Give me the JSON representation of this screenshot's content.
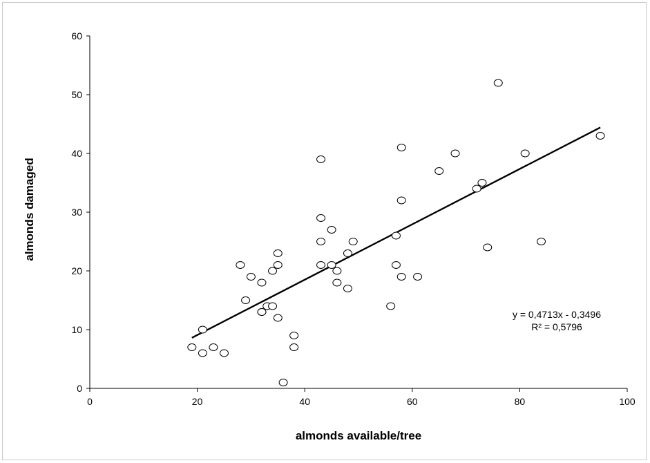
{
  "chart_data": {
    "type": "scatter",
    "xlabel": "almonds available/tree",
    "ylabel": "almonds damaged",
    "xlim": [
      0,
      100
    ],
    "ylim": [
      0,
      60
    ],
    "x_ticks": [
      0,
      20,
      40,
      60,
      80,
      100
    ],
    "y_ticks": [
      0,
      10,
      20,
      30,
      40,
      50,
      60
    ],
    "grid": false,
    "points": [
      {
        "x": 19,
        "y": 7
      },
      {
        "x": 21,
        "y": 6
      },
      {
        "x": 21,
        "y": 10
      },
      {
        "x": 23,
        "y": 7
      },
      {
        "x": 25,
        "y": 6
      },
      {
        "x": 28,
        "y": 21
      },
      {
        "x": 29,
        "y": 15
      },
      {
        "x": 30,
        "y": 19
      },
      {
        "x": 32,
        "y": 18
      },
      {
        "x": 32,
        "y": 13
      },
      {
        "x": 32,
        "y": 13
      },
      {
        "x": 33,
        "y": 14
      },
      {
        "x": 34,
        "y": 14
      },
      {
        "x": 34,
        "y": 20
      },
      {
        "x": 35,
        "y": 23
      },
      {
        "x": 35,
        "y": 21
      },
      {
        "x": 35,
        "y": 12
      },
      {
        "x": 36,
        "y": 1
      },
      {
        "x": 38,
        "y": 9
      },
      {
        "x": 38,
        "y": 7
      },
      {
        "x": 43,
        "y": 39
      },
      {
        "x": 43,
        "y": 29
      },
      {
        "x": 43,
        "y": 25
      },
      {
        "x": 43,
        "y": 21
      },
      {
        "x": 45,
        "y": 27
      },
      {
        "x": 45,
        "y": 21
      },
      {
        "x": 46,
        "y": 20
      },
      {
        "x": 46,
        "y": 18
      },
      {
        "x": 48,
        "y": 23
      },
      {
        "x": 48,
        "y": 17
      },
      {
        "x": 49,
        "y": 25
      },
      {
        "x": 56,
        "y": 14
      },
      {
        "x": 57,
        "y": 26
      },
      {
        "x": 57,
        "y": 21
      },
      {
        "x": 58,
        "y": 41
      },
      {
        "x": 58,
        "y": 32
      },
      {
        "x": 58,
        "y": 19
      },
      {
        "x": 61,
        "y": 19
      },
      {
        "x": 65,
        "y": 37
      },
      {
        "x": 68,
        "y": 40
      },
      {
        "x": 72,
        "y": 34
      },
      {
        "x": 73,
        "y": 35
      },
      {
        "x": 74,
        "y": 24
      },
      {
        "x": 76,
        "y": 52
      },
      {
        "x": 81,
        "y": 40
      },
      {
        "x": 84,
        "y": 25
      },
      {
        "x": 95,
        "y": 43
      }
    ],
    "trendline": {
      "slope": 0.4713,
      "intercept": -0.3496,
      "x_range": [
        19,
        95
      ]
    },
    "annotations": [
      "y = 0,4713x - 0,3496",
      "R² = 0,5796"
    ]
  }
}
